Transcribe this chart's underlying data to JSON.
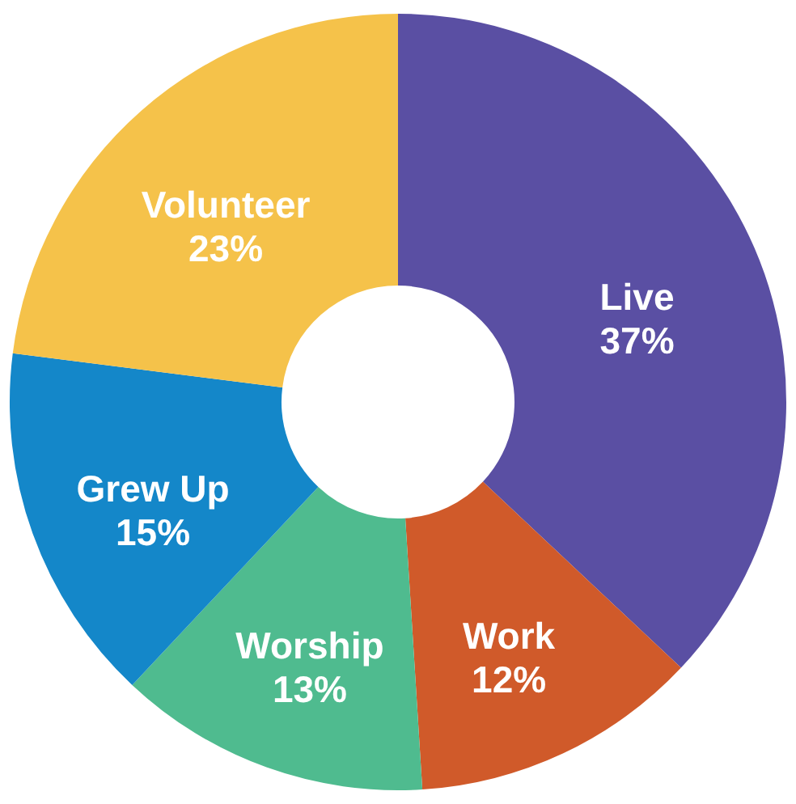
{
  "chart_data": {
    "type": "donut",
    "categories": [
      "Live",
      "Work",
      "Worship",
      "Grew Up",
      "Volunteer"
    ],
    "values": [
      37,
      12,
      13,
      15,
      23
    ],
    "value_labels": [
      "37%",
      "12%",
      "13%",
      "15%",
      "23%"
    ],
    "colors": [
      "#5a4fa3",
      "#d05a2a",
      "#4fbb8f",
      "#1487c9",
      "#f5c24a"
    ]
  }
}
